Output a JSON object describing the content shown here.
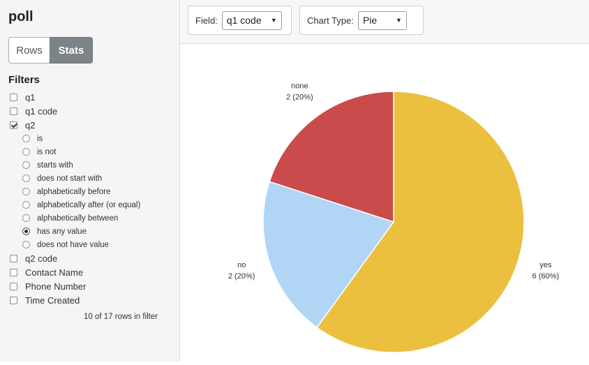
{
  "app": {
    "title": "poll"
  },
  "view_toggle": {
    "rows_label": "Rows",
    "stats_label": "Stats",
    "active": "Stats"
  },
  "filters": {
    "title": "Filters",
    "items": [
      {
        "label": "q1",
        "checked": false
      },
      {
        "label": "q1 code",
        "checked": false
      },
      {
        "label": "q2",
        "checked": true
      },
      {
        "label": "q2 code",
        "checked": false
      },
      {
        "label": "Contact Name",
        "checked": false
      },
      {
        "label": "Phone Number",
        "checked": false
      },
      {
        "label": "Time Created",
        "checked": false
      }
    ],
    "q2_options": [
      {
        "label": "is",
        "selected": false
      },
      {
        "label": "is not",
        "selected": false
      },
      {
        "label": "starts with",
        "selected": false
      },
      {
        "label": "does not start with",
        "selected": false
      },
      {
        "label": "alphabetically before",
        "selected": false
      },
      {
        "label": "alphabetically after (or equal)",
        "selected": false
      },
      {
        "label": "alphabetically between",
        "selected": false
      },
      {
        "label": "has any value",
        "selected": true
      },
      {
        "label": "does not have value",
        "selected": false
      }
    ],
    "rows_count": "10 of 17 rows in filter"
  },
  "toolbar": {
    "field_label": "Field:",
    "field_value": "q1 code",
    "chart_type_label": "Chart Type:",
    "chart_type_value": "Pie",
    "dropdown_icon": "triangle-down-icon"
  },
  "chart_data": {
    "type": "pie",
    "slices": [
      {
        "category": "yes",
        "value": 6,
        "label": "6 (60%)",
        "color": "#ebc03f"
      },
      {
        "category": "no",
        "value": 2,
        "label": "2 (20%)",
        "color": "#b1d6f5"
      },
      {
        "category": "none",
        "value": 2,
        "label": "2 (20%)",
        "color": "#c94b4b"
      }
    ],
    "start": "12 o'clock, clockwise",
    "legend": "none (labels outside slices)"
  }
}
